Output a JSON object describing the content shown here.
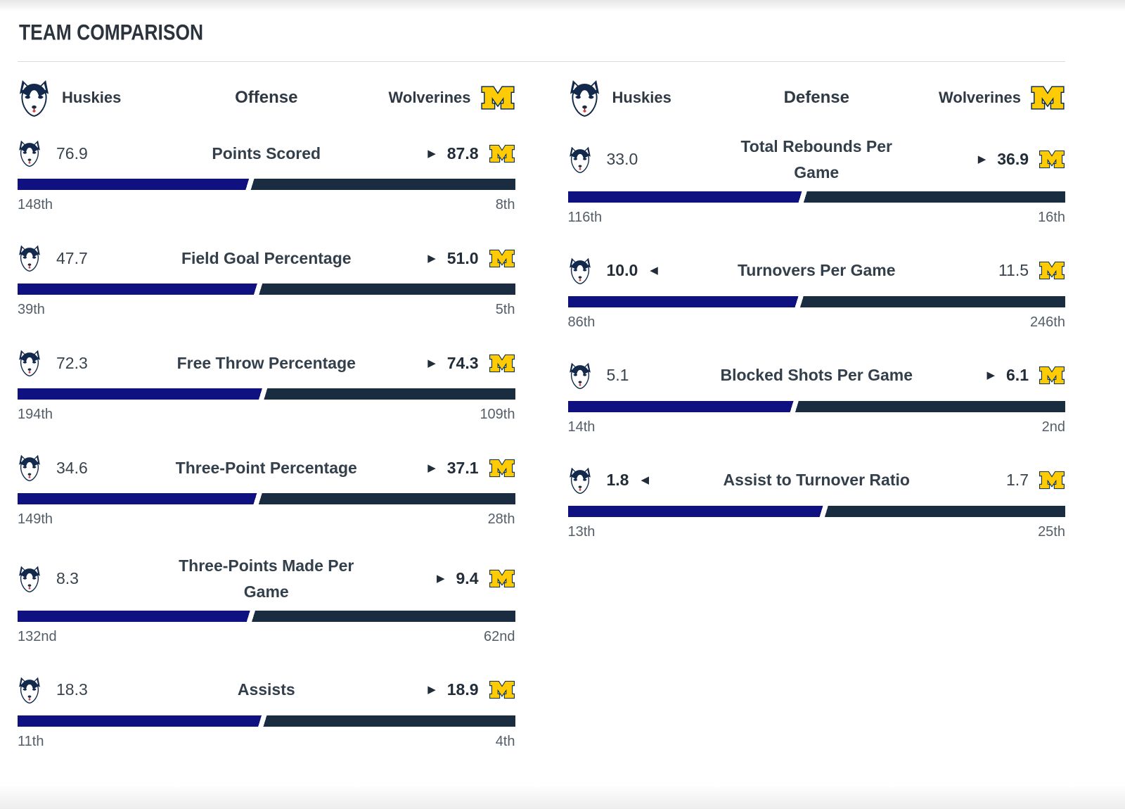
{
  "page": {
    "title": "TEAM COMPARISON"
  },
  "teams": {
    "left": {
      "name": "Huskies"
    },
    "right": {
      "name": "Wolverines"
    }
  },
  "icons": {
    "advantage_right": "▶",
    "advantage_left": "◀",
    "huskies_logo": "husky-head",
    "wolverines_logo": "block-m"
  },
  "colors": {
    "huskies_bar": "#0f1180",
    "wolverines_bar": "#1a2c40",
    "bar_gap": "#ffffff",
    "maize": "#ffcb05",
    "michigan_navy": "#00274c",
    "husky_navy": "#13294b",
    "rank_gray": "#545e69"
  },
  "columns": [
    {
      "title": "Offense",
      "rows": [
        {
          "name": "Points Scored",
          "left_value": "76.9",
          "right_value": "87.8",
          "winner": "right",
          "left_rank": "148th",
          "right_rank": "8th"
        },
        {
          "name": "Field Goal Percentage",
          "left_value": "47.7",
          "right_value": "51.0",
          "winner": "right",
          "left_rank": "39th",
          "right_rank": "5th"
        },
        {
          "name": "Free Throw Percentage",
          "left_value": "72.3",
          "right_value": "74.3",
          "winner": "right",
          "left_rank": "194th",
          "right_rank": "109th"
        },
        {
          "name": "Three-Point Percentage",
          "left_value": "34.6",
          "right_value": "37.1",
          "winner": "right",
          "left_rank": "149th",
          "right_rank": "28th"
        },
        {
          "name": "Three-Points Made Per Game",
          "left_value": "8.3",
          "right_value": "9.4",
          "winner": "right",
          "left_rank": "132nd",
          "right_rank": "62nd"
        },
        {
          "name": "Assists",
          "left_value": "18.3",
          "right_value": "18.9",
          "winner": "right",
          "left_rank": "11th",
          "right_rank": "4th"
        }
      ]
    },
    {
      "title": "Defense",
      "rows": [
        {
          "name": "Total Rebounds Per Game",
          "left_value": "33.0",
          "right_value": "36.9",
          "winner": "right",
          "left_rank": "116th",
          "right_rank": "16th"
        },
        {
          "name": "Turnovers Per Game",
          "left_value": "10.0",
          "right_value": "11.5",
          "winner": "left",
          "left_rank": "86th",
          "right_rank": "246th"
        },
        {
          "name": "Blocked Shots Per Game",
          "left_value": "5.1",
          "right_value": "6.1",
          "winner": "right",
          "left_rank": "14th",
          "right_rank": "2nd"
        },
        {
          "name": "Assist to Turnover Ratio",
          "left_value": "1.8",
          "right_value": "1.7",
          "winner": "left",
          "left_rank": "13th",
          "right_rank": "25th"
        }
      ]
    }
  ]
}
